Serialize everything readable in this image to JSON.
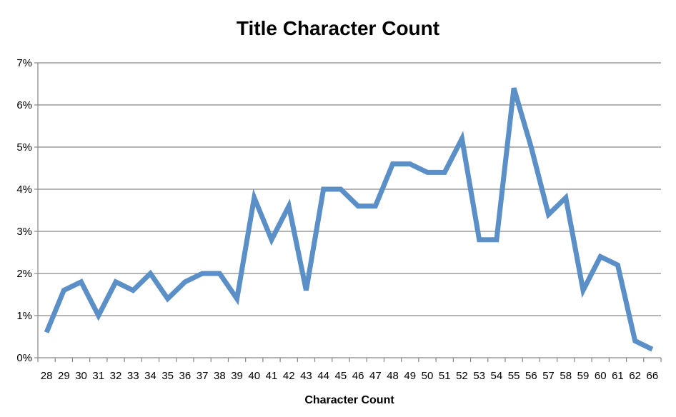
{
  "chart_data": {
    "type": "line",
    "title": "Title Character Count",
    "xlabel": "Character Count",
    "ylabel": "",
    "categories": [
      "28",
      "29",
      "30",
      "31",
      "32",
      "33",
      "34",
      "35",
      "36",
      "37",
      "38",
      "39",
      "40",
      "41",
      "42",
      "43",
      "44",
      "45",
      "46",
      "47",
      "48",
      "49",
      "50",
      "51",
      "52",
      "53",
      "54",
      "55",
      "56",
      "57",
      "58",
      "59",
      "60",
      "61",
      "62",
      "66"
    ],
    "series": [
      {
        "values": [
          0.6,
          1.6,
          1.8,
          1.0,
          1.8,
          1.6,
          2.0,
          1.4,
          1.8,
          2.0,
          2.0,
          1.4,
          3.8,
          2.8,
          3.6,
          1.6,
          4.0,
          4.0,
          3.6,
          3.6,
          4.6,
          4.6,
          4.4,
          4.4,
          5.2,
          2.8,
          2.8,
          6.4,
          5.0,
          3.4,
          3.8,
          1.6,
          2.4,
          2.2,
          0.4,
          0.2
        ]
      }
    ],
    "ylim": [
      0,
      7
    ],
    "yticks": [
      0,
      1,
      2,
      3,
      4,
      5,
      6,
      7
    ],
    "ytick_labels": [
      "0%",
      "1%",
      "2%",
      "3%",
      "4%",
      "5%",
      "6%",
      "7%"
    ],
    "grid": true,
    "legend": "none",
    "colors": {
      "series": "#5b8fc7"
    }
  }
}
